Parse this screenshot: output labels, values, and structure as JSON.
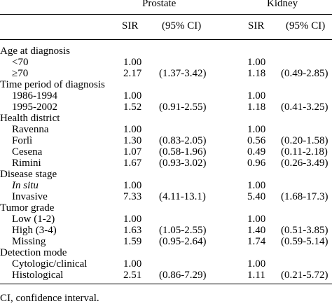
{
  "table": {
    "group_headers": [
      "Prostate",
      "Kidney"
    ],
    "sub_headers": [
      "SIR",
      "(95% CI)",
      "SIR",
      "(95% CI)"
    ],
    "sections": [
      {
        "title": "Age at diagnosis",
        "rows": [
          {
            "label": "<70",
            "p_sir": "1.00",
            "p_ci": "",
            "k_sir": "1.00",
            "k_ci": ""
          },
          {
            "label": "≥70",
            "p_sir": "2.17",
            "p_ci": "(1.37-3.42)",
            "k_sir": "1.18",
            "k_ci": "(0.49-2.85)"
          }
        ]
      },
      {
        "title": "Time period of diagnosis",
        "rows": [
          {
            "label": "1986-1994",
            "p_sir": "1.00",
            "p_ci": "",
            "k_sir": "1.00",
            "k_ci": ""
          },
          {
            "label": "1995-2002",
            "p_sir": "1.52",
            "p_ci": "(0.91-2.55)",
            "k_sir": "1.18",
            "k_ci": "(0.41-3.25)"
          }
        ]
      },
      {
        "title": "Health district",
        "rows": [
          {
            "label": "Ravenna",
            "p_sir": "1.00",
            "p_ci": "",
            "k_sir": "1.00",
            "k_ci": ""
          },
          {
            "label": "Forlì",
            "p_sir": "1.30",
            "p_ci": "(0.83-2.05)",
            "k_sir": "0.56",
            "k_ci": "(0.20-1.58)"
          },
          {
            "label": "Cesena",
            "p_sir": "1.07",
            "p_ci": "(0.58-1.96)",
            "k_sir": "0.49",
            "k_ci": "(0.11-2.18)"
          },
          {
            "label": "Rimini",
            "p_sir": "1.67",
            "p_ci": "(0.93-3.02)",
            "k_sir": "0.96",
            "k_ci": "(0.26-3.49)"
          }
        ]
      },
      {
        "title": "Disease stage",
        "rows": [
          {
            "label": "In situ",
            "italic": true,
            "p_sir": "1.00",
            "p_ci": "",
            "k_sir": "1.00",
            "k_ci": ""
          },
          {
            "label": "Invasive",
            "p_sir": "7.33",
            "p_ci": "(4.11-13.1)",
            "k_sir": "5.40",
            "k_ci": "(1.68-17.3)"
          }
        ]
      },
      {
        "title": "Tumor grade",
        "rows": [
          {
            "label": "Low (1-2)",
            "p_sir": "1.00",
            "p_ci": "",
            "k_sir": "1.00",
            "k_ci": ""
          },
          {
            "label": "High (3-4)",
            "p_sir": "1.63",
            "p_ci": "(1.05-2.55)",
            "k_sir": "1.40",
            "k_ci": "(0.51-3.85)"
          },
          {
            "label": "Missing",
            "p_sir": "1.59",
            "p_ci": "(0.95-2.64)",
            "k_sir": "1.74",
            "k_ci": "(0.59-5.14)"
          }
        ]
      },
      {
        "title": "Detection mode",
        "rows": [
          {
            "label": "Cytologic/clinical",
            "p_sir": "1.00",
            "p_ci": "",
            "k_sir": "1.00",
            "k_ci": ""
          },
          {
            "label": "Histological",
            "p_sir": "2.51",
            "p_ci": "(0.86-7.29)",
            "k_sir": "1.11",
            "k_ci": "(0.21-5.72)"
          }
        ]
      }
    ]
  },
  "footnote": "CI, confidence interval."
}
